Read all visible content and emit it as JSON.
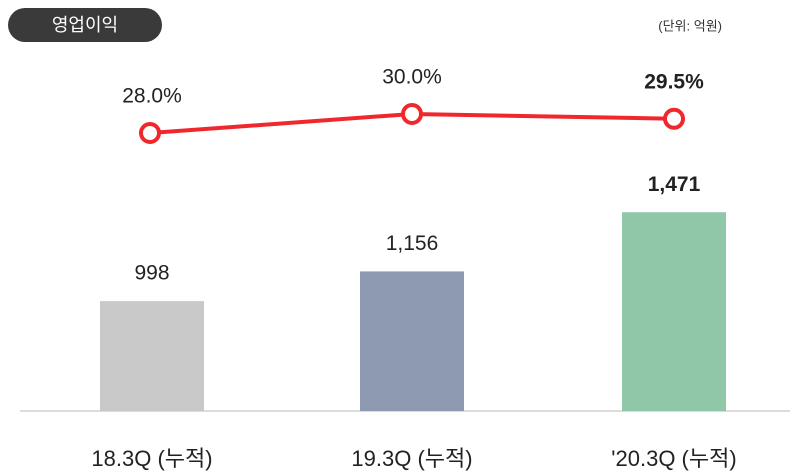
{
  "chart_data": {
    "type": "bar",
    "title": "영업이익",
    "unit": "(단위: 억원)",
    "categories": [
      "18.3Q (누적)",
      "19.3Q (누적)",
      "'20.3Q (누적)"
    ],
    "series": [
      {
        "type": "bar",
        "colors": [
          "#c9c9c9",
          "#8d9ab1",
          "#8fc7a8"
        ],
        "values": [
          998,
          1156,
          1471
        ],
        "value_labels": [
          "998",
          "1,156",
          "1,471"
        ]
      },
      {
        "type": "line",
        "axis": "y2",
        "color": "#f0282d",
        "values": [
          28.0,
          30.0,
          29.5
        ],
        "value_labels": [
          "28.0%",
          "30.0%",
          "29.5%"
        ]
      }
    ],
    "ylim": [
      413,
      1600
    ],
    "y2lim": [
      20,
      32
    ]
  }
}
